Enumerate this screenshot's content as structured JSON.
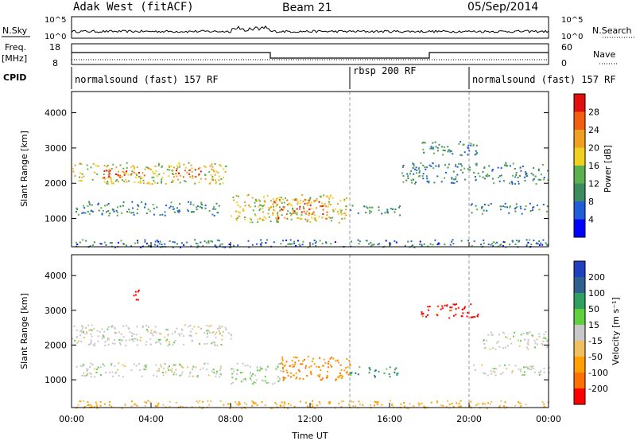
{
  "header": {
    "radar": "Adak West (fitACF)",
    "beam": "Beam 21",
    "date": "05/Sep/2014"
  },
  "sky_panel": {
    "left_label": "N.Sky",
    "right_label": "N.Search",
    "left_ticks": [
      "10^5",
      "10^0"
    ],
    "right_ticks": [
      "10^5",
      "10^0"
    ]
  },
  "freq_panel": {
    "left_label_1": "Freq.",
    "left_label_2": "[MHz]",
    "right_label": "Nave",
    "left_ticks": [
      "18",
      "8"
    ],
    "right_ticks": [
      "60",
      "0"
    ]
  },
  "cpid": {
    "label": "CPID",
    "segments": [
      {
        "text": "normalsound (fast) 157 RF",
        "start_hour": 0
      },
      {
        "text": "rbsp 200 RF",
        "start_hour": 14
      },
      {
        "text": "normalsound (fast) 157 RF",
        "start_hour": 20
      }
    ]
  },
  "colors": {
    "power": [
      "#0000ff",
      "#1f5ed8",
      "#3c8c60",
      "#5db050",
      "#f0d020",
      "#f0a020",
      "#f06010",
      "#e01010"
    ],
    "velocity": [
      "#ff0000",
      "#ff7000",
      "#ffa000",
      "#f0c060",
      "#c8c8c8",
      "#60d040",
      "#30a060",
      "#306090",
      "#2040c0"
    ]
  },
  "chart_data": [
    {
      "type": "heatmap",
      "panel": "power",
      "ylabel": "Slant Range [km]",
      "yticks": [
        "1000",
        "2000",
        "3000",
        "4000"
      ],
      "ylim": [
        200,
        4600
      ],
      "xlim": [
        0,
        24
      ],
      "colorbar_label": "Power [dB]",
      "colorbar_ticks": [
        "4",
        "8",
        "12",
        "16",
        "20",
        "24",
        "28"
      ],
      "regions": [
        {
          "t0": 0.0,
          "t1": 7.8,
          "r0": 2000,
          "r1": 2600,
          "v": 0.55
        },
        {
          "t0": 1.5,
          "t1": 4.0,
          "r0": 2150,
          "r1": 2400,
          "v": 0.85
        },
        {
          "t0": 5.0,
          "t1": 6.5,
          "r0": 2200,
          "r1": 2500,
          "v": 0.8
        },
        {
          "t0": 0.2,
          "t1": 7.5,
          "r0": 1100,
          "r1": 1500,
          "v": 0.3
        },
        {
          "t0": 8.0,
          "t1": 13.8,
          "r0": 900,
          "r1": 1700,
          "v": 0.55
        },
        {
          "t0": 10.0,
          "t1": 13.0,
          "r0": 1000,
          "r1": 1600,
          "v": 0.75
        },
        {
          "t0": 14.0,
          "t1": 16.5,
          "r0": 1100,
          "r1": 1400,
          "v": 0.3
        },
        {
          "t0": 20.0,
          "t1": 24.0,
          "r0": 1150,
          "r1": 1450,
          "v": 0.3
        },
        {
          "t0": 16.5,
          "t1": 24.0,
          "r0": 2000,
          "r1": 2600,
          "v": 0.3
        },
        {
          "t0": 17.6,
          "t1": 20.5,
          "r0": 2800,
          "r1": 3200,
          "v": 0.3
        },
        {
          "t0": 0.0,
          "t1": 24.0,
          "r0": 200,
          "r1": 420,
          "v": 0.25
        }
      ]
    },
    {
      "type": "heatmap",
      "panel": "velocity",
      "ylabel": "Slant Range [km]",
      "yticks": [
        "1000",
        "2000",
        "3000",
        "4000"
      ],
      "ylim": [
        200,
        4600
      ],
      "xlim": [
        0,
        24
      ],
      "xlabel": "Time UT",
      "xticks": [
        "00:00",
        "04:00",
        "08:00",
        "12:00",
        "16:00",
        "20:00",
        "00:00"
      ],
      "colorbar_label": "Velocity [m s⁻¹]",
      "colorbar_ticks": [
        "-200",
        "-100",
        "-50",
        "-15",
        "15",
        "50",
        "100",
        "200"
      ],
      "regions": [
        {
          "t0": 0.0,
          "t1": 8.0,
          "r0": 2000,
          "r1": 2600,
          "v": 0.0
        },
        {
          "t0": 0.2,
          "t1": 7.5,
          "r0": 1100,
          "r1": 1500,
          "v": 0.0
        },
        {
          "t0": 8.0,
          "t1": 10.5,
          "r0": 900,
          "r1": 1500,
          "v": 0.1
        },
        {
          "t0": 10.5,
          "t1": 14.0,
          "r0": 1000,
          "r1": 1700,
          "v": -0.6
        },
        {
          "t0": 14.0,
          "t1": 16.5,
          "r0": 1100,
          "r1": 1400,
          "v": 0.5
        },
        {
          "t0": 3.0,
          "t1": 3.5,
          "r0": 3300,
          "r1": 3600,
          "v": -1.0
        },
        {
          "t0": 17.5,
          "t1": 20.5,
          "r0": 2800,
          "r1": 3200,
          "v": -1.0
        },
        {
          "t0": 20.0,
          "t1": 24.0,
          "r0": 1150,
          "r1": 1450,
          "v": 0.0
        },
        {
          "t0": 20.5,
          "t1": 24.0,
          "r0": 1900,
          "r1": 2400,
          "v": 0.0
        },
        {
          "t0": 0.0,
          "t1": 24.0,
          "r0": 200,
          "r1": 420,
          "v": -0.4
        }
      ]
    }
  ]
}
